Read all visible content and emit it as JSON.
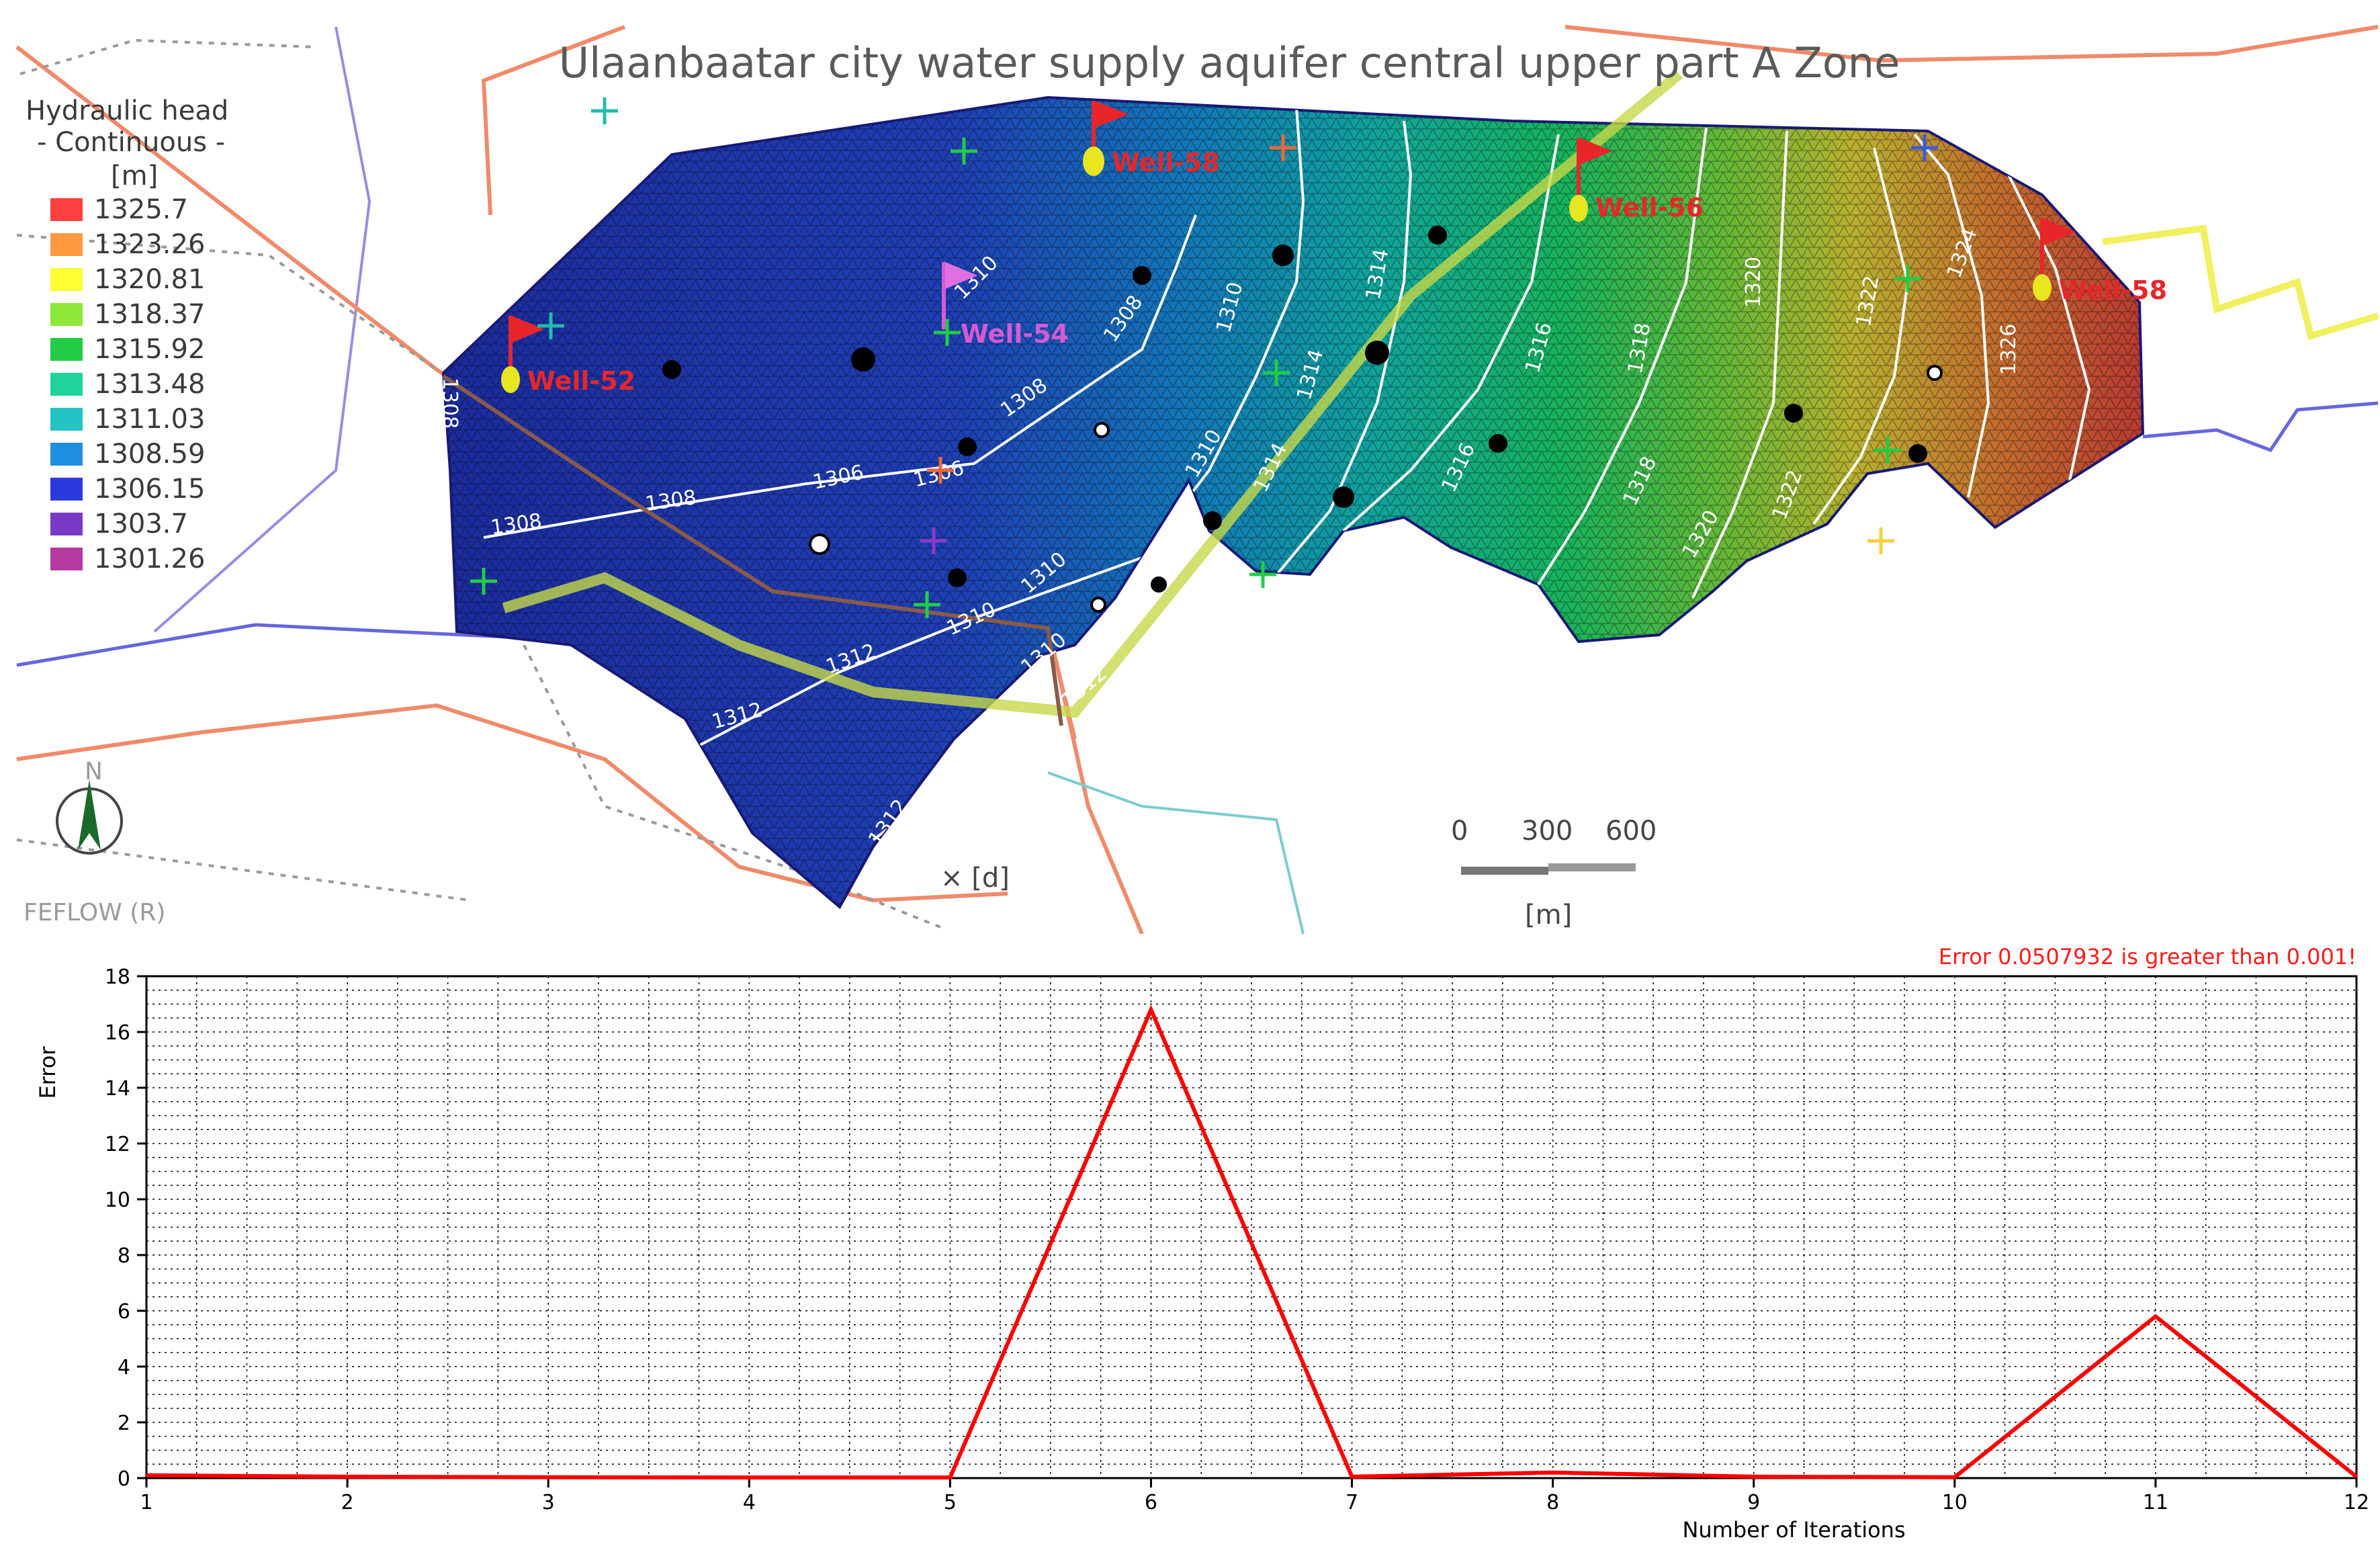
{
  "map": {
    "title": "Ulaanbaatar city water supply aquifer central upper part A Zone",
    "legend": {
      "title": "Hydraulic head",
      "subtitle": "- Continuous -",
      "unit": "[m]",
      "entries": [
        {
          "label": "1325.7",
          "color": "#ff4040"
        },
        {
          "label": "1323.26",
          "color": "#ff9a40"
        },
        {
          "label": "1320.81",
          "color": "#ffff33"
        },
        {
          "label": "1318.37",
          "color": "#8ee83a"
        },
        {
          "label": "1315.92",
          "color": "#22cc44"
        },
        {
          "label": "1313.48",
          "color": "#1fd39a"
        },
        {
          "label": "1311.03",
          "color": "#22c4c4"
        },
        {
          "label": "1308.59",
          "color": "#1e8ee0"
        },
        {
          "label": "1306.15",
          "color": "#2a3adf"
        },
        {
          "label": "1303.7",
          "color": "#7a3ac8"
        },
        {
          "label": "1301.26",
          "color": "#b43aa0"
        }
      ]
    },
    "wells": [
      {
        "label": "Well-58",
        "style": "red"
      },
      {
        "label": "Well-52",
        "style": "red"
      },
      {
        "label": "Well-54",
        "style": "pink"
      },
      {
        "label": "Well-56",
        "style": "red"
      },
      {
        "label": "Well-58",
        "style": "red"
      }
    ],
    "contour_labels": [
      "1308",
      "1308",
      "1308",
      "1306",
      "1306",
      "1308",
      "1308",
      "1310",
      "1310",
      "1310",
      "1310",
      "1312",
      "1312",
      "1312",
      "1314",
      "1314",
      "1314",
      "1316",
      "1316",
      "1318",
      "1320",
      "1322",
      "1324",
      "1326",
      "1318",
      "1320",
      "1322",
      "1310",
      "1312",
      "1310",
      "1312"
    ],
    "scale": {
      "ticks": [
        "0",
        "300",
        "600"
      ],
      "unit": "[m]"
    },
    "marker_label": "× [d]",
    "north_label": "N",
    "watermark": "FEFLOW (R)"
  },
  "chart_data": {
    "type": "line",
    "title": "",
    "xlabel": "Number of Iterations",
    "ylabel": "Error",
    "x": [
      1,
      2,
      3,
      4,
      5,
      6,
      7,
      8,
      9,
      10,
      11,
      12
    ],
    "series": [
      {
        "name": "",
        "color": "#ff0000",
        "values": [
          0.1,
          0.05,
          0.03,
          0.02,
          0.02,
          16.8,
          0.05,
          0.2,
          0.05,
          0.03,
          5.8,
          0.05
        ]
      }
    ],
    "xlim": [
      1,
      12
    ],
    "ylim": [
      0,
      18
    ],
    "xticks": [
      "1",
      "2",
      "3",
      "4",
      "5",
      "6",
      "7",
      "8",
      "9",
      "10",
      "11",
      "12"
    ],
    "yticks": [
      "0",
      "2",
      "4",
      "6",
      "8",
      "10",
      "12",
      "14",
      "16",
      "18"
    ],
    "grid": true,
    "annotation": "Error 0.0507932 is greater than 0.001!"
  }
}
